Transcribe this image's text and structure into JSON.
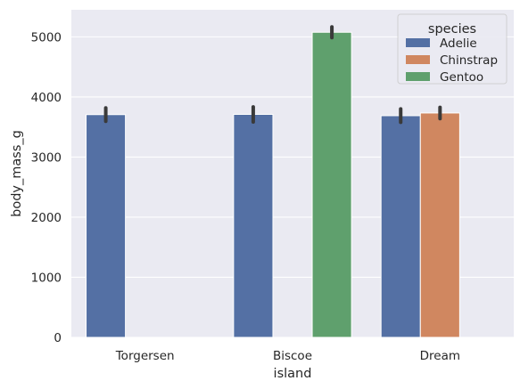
{
  "chart_data": {
    "type": "bar",
    "categories": [
      "Torgersen",
      "Biscoe",
      "Dream"
    ],
    "series": [
      {
        "name": "Adelie",
        "color": "#5470a4",
        "values": [
          3706,
          3710,
          3688
        ],
        "ci": [
          [
            3596,
            3818
          ],
          [
            3584,
            3834
          ],
          [
            3579,
            3800
          ]
        ]
      },
      {
        "name": "Chinstrap",
        "color": "#d08760",
        "values": [
          null,
          null,
          3733
        ],
        "ci": [
          null,
          null,
          [
            3640,
            3826
          ]
        ]
      },
      {
        "name": "Gentoo",
        "color": "#5fa06d",
        "values": [
          null,
          5076,
          null
        ],
        "ci": [
          null,
          [
            4988,
            5165
          ],
          null
        ]
      }
    ],
    "xlabel": "island",
    "ylabel": "body_mass_g",
    "ylim": [
      0,
      5450
    ],
    "yticks": [
      0,
      1000,
      2000,
      3000,
      4000,
      5000
    ],
    "grid": true,
    "legend": {
      "title": "species",
      "placement": "top-right"
    },
    "background": "#eaeaf2"
  }
}
